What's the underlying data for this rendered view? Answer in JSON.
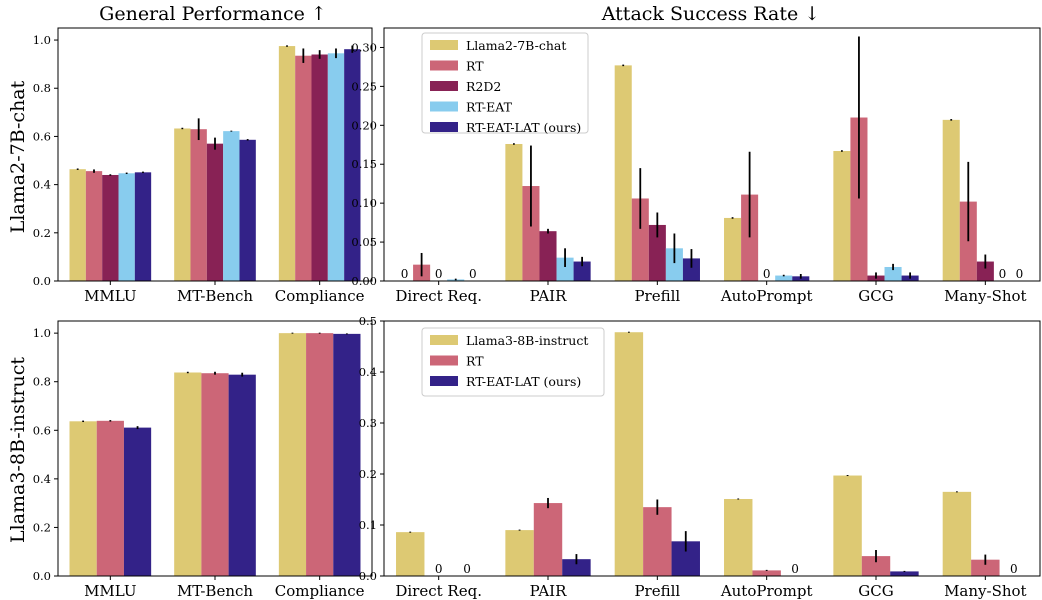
{
  "figure": {
    "column_titles": [
      "General Performance  ↑",
      "Attack Success Rate  ↓"
    ],
    "row_labels": [
      "Llama2-7B-chat",
      "Llama3-8B-instruct"
    ]
  },
  "colors": {
    "Llama2-7B-chat": "#ddc973",
    "Llama3-8B-instruct": "#ddc973",
    "RT": "#cc6677",
    "R2D2": "#882255",
    "RT-EAT": "#88ccee",
    "RT-EAT-LAT (ours)": "#332288",
    "error": "#000000"
  },
  "chart_data": [
    {
      "type": "bar",
      "panel": "llama2-general",
      "title": "General Performance  ↑",
      "ylabel": "Llama2-7B-chat",
      "ylim": [
        0,
        1.05
      ],
      "yticks": [
        0.0,
        0.2,
        0.4,
        0.6,
        0.8,
        1.0
      ],
      "ytick_labels": [
        "0.0",
        "0.2",
        "0.4",
        "0.6",
        "0.8",
        "1.0"
      ],
      "categories": [
        "MMLU",
        "MT-Bench",
        "Compliance"
      ],
      "series": [
        {
          "name": "Llama2-7B-chat",
          "values": [
            0.464,
            0.633,
            0.975
          ],
          "errors": [
            0.003,
            0.003,
            0.003
          ]
        },
        {
          "name": "RT",
          "values": [
            0.456,
            0.63,
            0.935
          ],
          "errors": [
            0.007,
            0.045,
            0.03
          ]
        },
        {
          "name": "R2D2",
          "values": [
            0.44,
            0.57,
            0.94
          ],
          "errors": [
            0.003,
            0.025,
            0.018
          ]
        },
        {
          "name": "RT-EAT",
          "values": [
            0.447,
            0.622,
            0.945
          ],
          "errors": [
            0.003,
            0.002,
            0.02
          ]
        },
        {
          "name": "RT-EAT-LAT (ours)",
          "values": [
            0.451,
            0.586,
            0.962
          ],
          "errors": [
            0.003,
            0.003,
            0.015
          ]
        }
      ],
      "legend": false
    },
    {
      "type": "bar",
      "panel": "llama2-asr",
      "title": "Attack Success Rate  ↓",
      "ylim": [
        0,
        0.325
      ],
      "yticks": [
        0.0,
        0.05,
        0.1,
        0.15,
        0.2,
        0.25,
        0.3
      ],
      "ytick_labels": [
        "0.00",
        "0.05",
        "0.10",
        "0.15",
        "0.20",
        "0.25",
        "0.30"
      ],
      "categories": [
        "Direct Req.",
        "PAIR",
        "Prefill",
        "AutoPrompt",
        "GCG",
        "Many-Shot"
      ],
      "series": [
        {
          "name": "Llama2-7B-chat",
          "values": [
            0,
            0.176,
            0.277,
            0.081,
            0.167,
            0.207
          ],
          "errors": [
            0,
            0.001,
            0.001,
            0.001,
            0.001,
            0.001
          ]
        },
        {
          "name": "RT",
          "values": [
            0.021,
            0.122,
            0.106,
            0.111,
            0.21,
            0.102
          ],
          "errors": [
            0.015,
            0.052,
            0.039,
            0.055,
            0.104,
            0.051
          ]
        },
        {
          "name": "R2D2",
          "values": [
            0,
            0.064,
            0.072,
            0,
            0.007,
            0.025
          ],
          "errors": [
            0,
            0.003,
            0.016,
            0,
            0.004,
            0.009
          ]
        },
        {
          "name": "RT-EAT",
          "values": [
            0.002,
            0.03,
            0.042,
            0.007,
            0.018,
            0
          ],
          "errors": [
            0.001,
            0.012,
            0.019,
            0.001,
            0.004,
            0
          ]
        },
        {
          "name": "RT-EAT-LAT (ours)",
          "values": [
            0,
            0.025,
            0.029,
            0.006,
            0.007,
            0
          ],
          "errors": [
            0,
            0.006,
            0.012,
            0.003,
            0.004,
            0
          ]
        }
      ],
      "zero_labels": [
        {
          "category": "Direct Req.",
          "series": "Llama2-7B-chat",
          "text": "0"
        },
        {
          "category": "Direct Req.",
          "series": "R2D2",
          "text": "0"
        },
        {
          "category": "Direct Req.",
          "series": "RT-EAT-LAT (ours)",
          "text": "0"
        },
        {
          "category": "AutoPrompt",
          "series": "R2D2",
          "text": "0"
        },
        {
          "category": "Many-Shot",
          "series": "RT-EAT",
          "text": "0"
        },
        {
          "category": "Many-Shot",
          "series": "RT-EAT-LAT (ours)",
          "text": "0"
        }
      ],
      "legend": true,
      "legend_position": "top-left"
    },
    {
      "type": "bar",
      "panel": "llama3-general",
      "ylabel": "Llama3-8B-instruct",
      "ylim": [
        0,
        1.05
      ],
      "yticks": [
        0.0,
        0.2,
        0.4,
        0.6,
        0.8,
        1.0
      ],
      "ytick_labels": [
        "0.0",
        "0.2",
        "0.4",
        "0.6",
        "0.8",
        "1.0"
      ],
      "categories": [
        "MMLU",
        "MT-Bench",
        "Compliance"
      ],
      "series": [
        {
          "name": "Llama3-8B-instruct",
          "values": [
            0.637,
            0.838,
            1.0
          ],
          "errors": [
            0.003,
            0.003,
            0.002
          ]
        },
        {
          "name": "RT",
          "values": [
            0.639,
            0.835,
            1.0
          ],
          "errors": [
            0.003,
            0.006,
            0.002
          ]
        },
        {
          "name": "RT-EAT-LAT (ours)",
          "values": [
            0.611,
            0.829,
            0.997
          ],
          "errors": [
            0.006,
            0.008,
            0.002
          ]
        }
      ],
      "legend": false
    },
    {
      "type": "bar",
      "panel": "llama3-asr",
      "ylim": [
        0,
        0.5
      ],
      "yticks": [
        0.0,
        0.1,
        0.2,
        0.3,
        0.4,
        0.5
      ],
      "ytick_labels": [
        "0.0",
        "0.1",
        "0.2",
        "0.3",
        "0.4",
        "0.5"
      ],
      "categories": [
        "Direct Req.",
        "PAIR",
        "Prefill",
        "AutoPrompt",
        "GCG",
        "Many-Shot"
      ],
      "series": [
        {
          "name": "Llama3-8B-instruct",
          "values": [
            0.086,
            0.09,
            0.478,
            0.151,
            0.197,
            0.165
          ],
          "errors": [
            0.001,
            0.001,
            0.001,
            0.001,
            0.001,
            0.001
          ]
        },
        {
          "name": "RT",
          "values": [
            0,
            0.143,
            0.135,
            0.011,
            0.039,
            0.032
          ],
          "errors": [
            0,
            0.01,
            0.015,
            0.001,
            0.012,
            0.01
          ]
        },
        {
          "name": "RT-EAT-LAT (ours)",
          "values": [
            0,
            0.033,
            0.068,
            0,
            0.009,
            0
          ],
          "errors": [
            0,
            0.01,
            0.02,
            0,
            0.001,
            0
          ]
        }
      ],
      "zero_labels": [
        {
          "category": "Direct Req.",
          "series": "RT",
          "text": "0"
        },
        {
          "category": "Direct Req.",
          "series": "RT-EAT-LAT (ours)",
          "text": "0"
        },
        {
          "category": "AutoPrompt",
          "series": "RT-EAT-LAT (ours)",
          "text": "0"
        },
        {
          "category": "Many-Shot",
          "series": "RT-EAT-LAT (ours)",
          "text": "0"
        }
      ],
      "legend": true,
      "legend_position": "top-left"
    }
  ]
}
